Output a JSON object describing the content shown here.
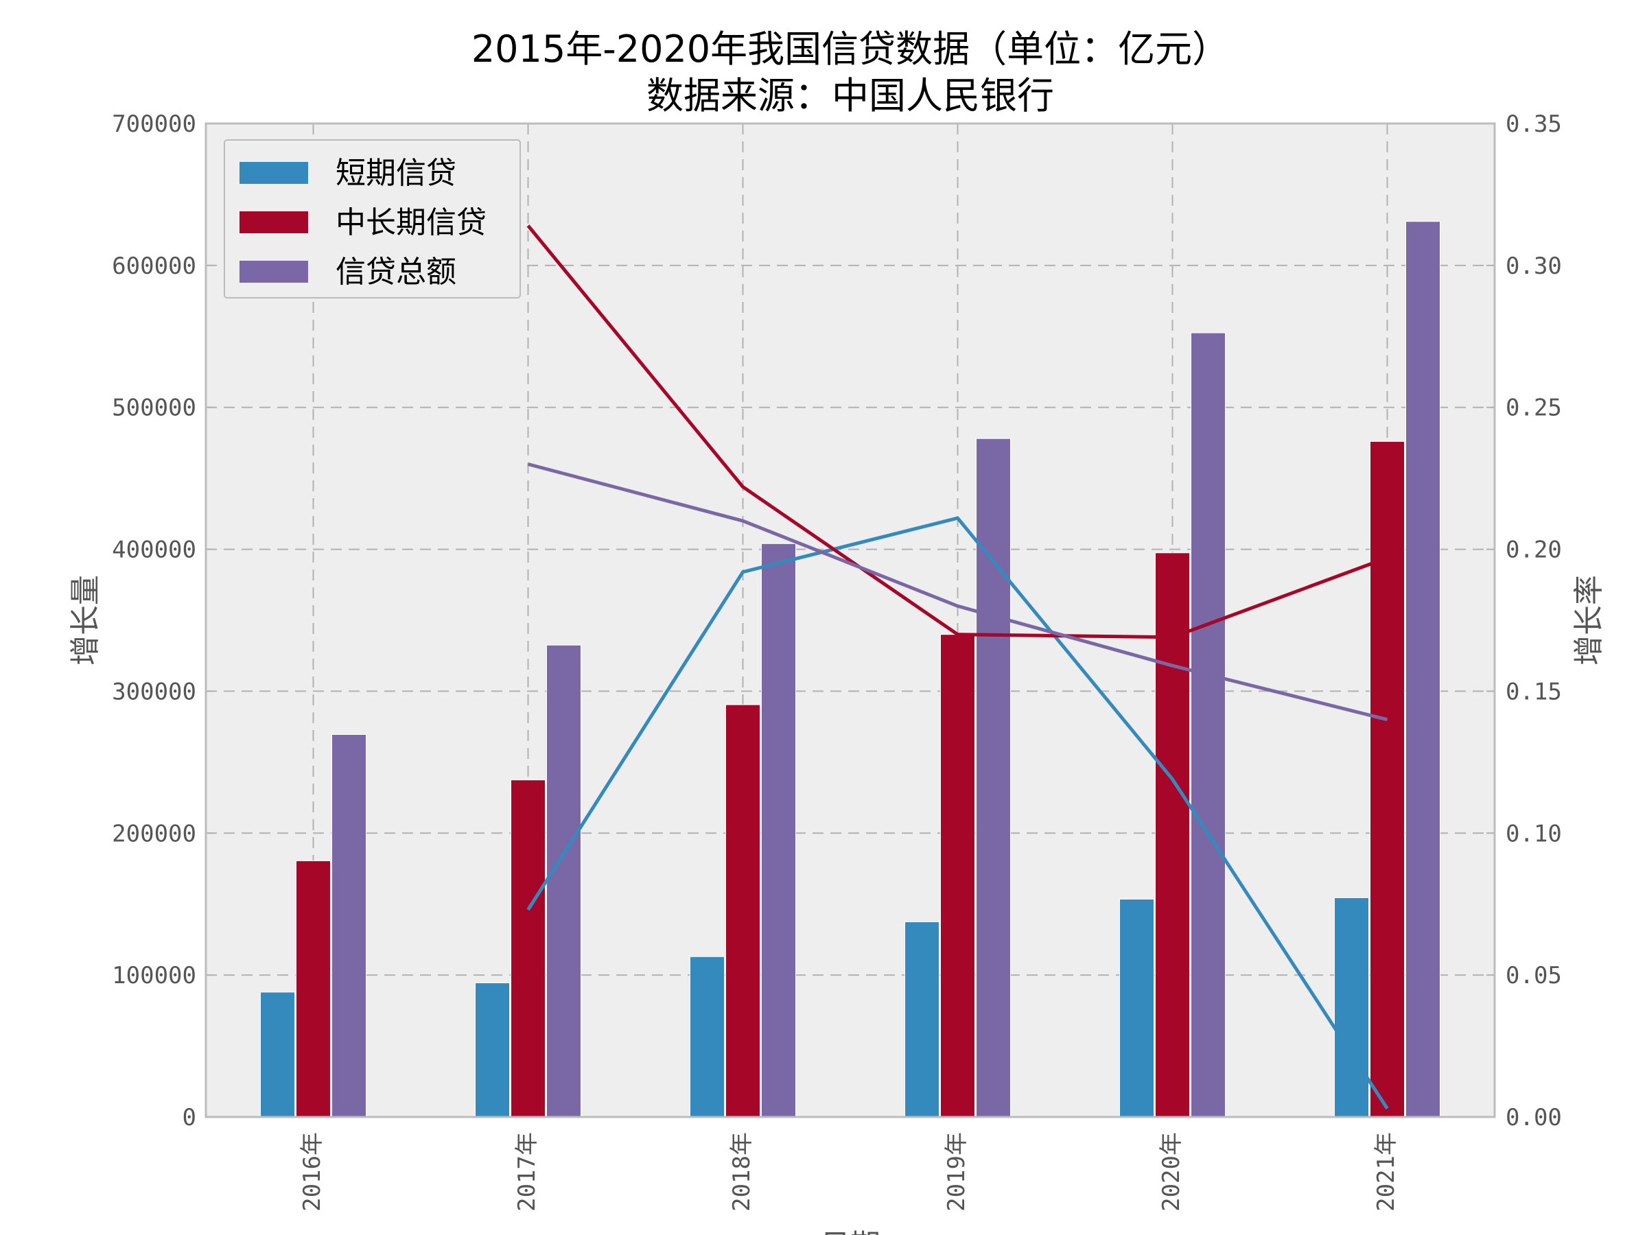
{
  "chart_data": {
    "type": "bar",
    "title": "2015年-2020年我国信贷数据（单位：亿元）",
    "subtitle": "数据来源：中国人民银行",
    "xlabel": "日期",
    "ylabel_left": "增长量",
    "ylabel_right": "增长率",
    "categories": [
      "2016年",
      "2017年",
      "2018年",
      "2019年",
      "2020年",
      "2021年"
    ],
    "ylim_left": [
      0,
      700000
    ],
    "ylim_right": [
      0,
      0.35
    ],
    "yticks_left": [
      "0",
      "100000",
      "200000",
      "300000",
      "400000",
      "500000",
      "600000",
      "700000"
    ],
    "yticks_right": [
      "0.00",
      "0.05",
      "0.10",
      "0.15",
      "0.20",
      "0.25",
      "0.30",
      "0.35"
    ],
    "grid": true,
    "legend_position": "top-left",
    "series": [
      {
        "name": "短期信贷",
        "color": "#348abd",
        "values": [
          88000,
          94500,
          113000,
          137500,
          153500,
          154500
        ]
      },
      {
        "name": "中长期信贷",
        "color": "#a60628",
        "values": [
          180500,
          237500,
          290500,
          340000,
          397500,
          476000
        ]
      },
      {
        "name": "信贷总额",
        "color": "#7a68a6",
        "values": [
          269500,
          332500,
          404000,
          478000,
          552500,
          631000
        ]
      }
    ],
    "rate_series": [
      {
        "name": "短期信贷",
        "color": "#348abd",
        "values": [
          null,
          0.073,
          0.192,
          0.211,
          0.119,
          0.003
        ]
      },
      {
        "name": "中长期信贷",
        "color": "#a60628",
        "values": [
          null,
          0.314,
          0.222,
          0.17,
          0.169,
          0.197
        ]
      },
      {
        "name": "信贷总额",
        "color": "#7a68a6",
        "values": [
          null,
          0.23,
          0.21,
          0.18,
          0.159,
          0.14
        ]
      }
    ]
  }
}
